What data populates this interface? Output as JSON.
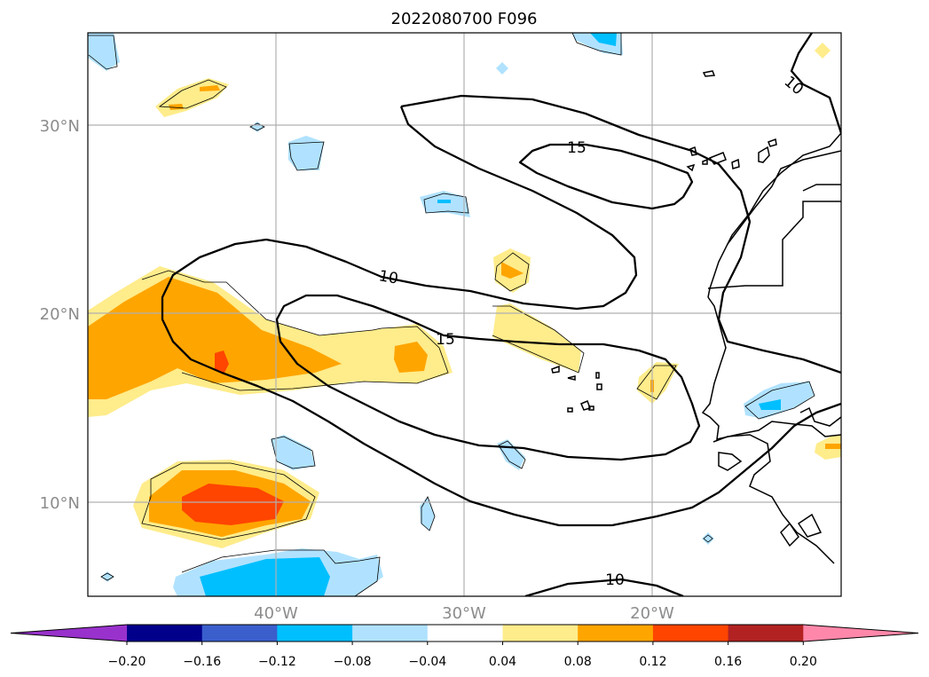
{
  "title": "2022080700 F096",
  "lat_ticks": [
    "30°N",
    "20°N",
    "10°N"
  ],
  "lon_ticks": [
    "40°W",
    "30°W",
    "20°W"
  ],
  "contour_labels": [
    "10",
    "15",
    "15",
    "10",
    "10"
  ],
  "colorbar": {
    "tick_labels": [
      "−0.20",
      "−0.16",
      "−0.12",
      "−0.08",
      "−0.04",
      "0.04",
      "0.08",
      "0.12",
      "0.16",
      "0.20"
    ],
    "colors": [
      "#9932cc",
      "#00008b",
      "#3a5fcd",
      "#00bfff",
      "#b0e2ff",
      "#ffffff",
      "#ffec8b",
      "#ffa500",
      "#ff4500",
      "#b22222",
      "#ff88aa"
    ]
  }
}
